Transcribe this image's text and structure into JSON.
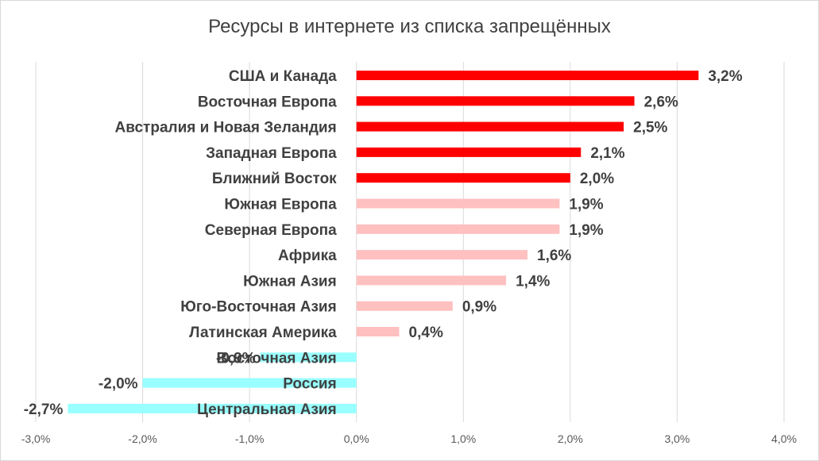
{
  "chart_data": {
    "type": "bar",
    "orientation": "horizontal",
    "title": "Ресурсы в интернете из списка запрещённых",
    "xlabel": "",
    "ylabel": "",
    "xlim": [
      -0.03,
      0.04
    ],
    "grid": true,
    "legend": "none",
    "xticks": [
      "-3,0%",
      "-2,0%",
      "-1,0%",
      "0,0%",
      "1,0%",
      "2,0%",
      "3,0%",
      "4,0%"
    ],
    "colors": {
      "high": "#ff0000",
      "medium": "#ffc0c0",
      "negative": "#99ffff"
    },
    "categories": [
      "США и Канада",
      "Восточная Европа",
      "Австралия и Новая Зеландия",
      "Западная Европа",
      "Ближний Восток",
      "Южная Европа",
      "Северная Европа",
      "Африка",
      "Южная Азия",
      "Юго-Восточная Азия",
      "Латинская Америка",
      "Восточная Азия",
      "Россия",
      "Центральная Азия"
    ],
    "values": [
      0.032,
      0.026,
      0.025,
      0.021,
      0.02,
      0.019,
      0.019,
      0.016,
      0.014,
      0.009,
      0.004,
      -0.009,
      -0.02,
      -0.027
    ],
    "labels": [
      "3,2%",
      "2,6%",
      "2,5%",
      "2,1%",
      "2,0%",
      "1,9%",
      "1,9%",
      "1,6%",
      "1,4%",
      "0,9%",
      "0,4%",
      "-0,9%",
      "-2,0%",
      "-2,7%"
    ],
    "color_groups": [
      "high",
      "high",
      "high",
      "high",
      "high",
      "medium",
      "medium",
      "medium",
      "medium",
      "medium",
      "medium",
      "negative",
      "negative",
      "negative"
    ]
  }
}
